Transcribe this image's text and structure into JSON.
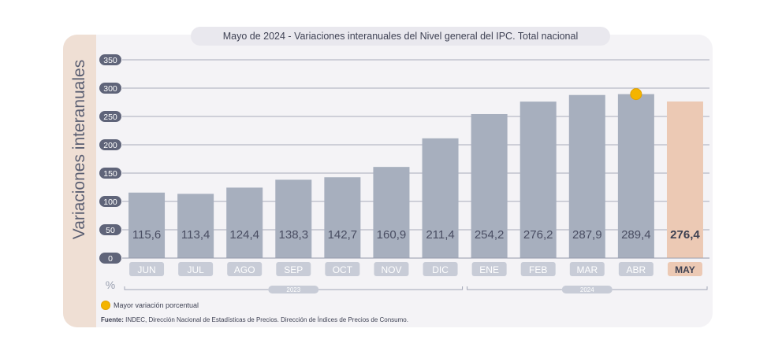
{
  "chart_data": {
    "type": "bar",
    "title": "Mayo de 2024 - Variaciones interanuales del Nivel general del IPC. Total nacional",
    "ylabel": "Variaciones interanuales",
    "yunit": "%",
    "ylim": [
      0,
      350
    ],
    "yticks": [
      "0",
      "50",
      "100",
      "150",
      "200",
      "250",
      "300",
      "350"
    ],
    "categories": [
      "JUN",
      "JUL",
      "AGO",
      "SEP",
      "OCT",
      "NOV",
      "DIC",
      "ENE",
      "FEB",
      "MAR",
      "ABR",
      "MAY"
    ],
    "values": [
      115.6,
      113.4,
      124.4,
      138.3,
      142.7,
      160.9,
      211.4,
      254.2,
      276.2,
      287.9,
      289.4,
      276.4
    ],
    "value_labels": [
      "115,6",
      "113,4",
      "124,4",
      "138,3",
      "142,7",
      "160,9",
      "211,4",
      "254,2",
      "276,2",
      "287,9",
      "289,4",
      "276,4"
    ],
    "year_groups": [
      {
        "label": "2023",
        "first": "JUN",
        "last": "DIC"
      },
      {
        "label": "2024",
        "first": "ENE",
        "last": "MAY"
      }
    ],
    "highlight": "MAY",
    "marker": "ABR",
    "grid": true,
    "colors": {
      "bar": "#a7afbe",
      "bar_highlight": "#ecc9b4",
      "pill": "#c8ccd7",
      "pill_highlight": "#ecc9b4",
      "text": "#4a4e63",
      "marker": "#f4b400"
    }
  },
  "legend": {
    "label": "Mayor variación porcentual"
  },
  "source": {
    "label": "Fuente:",
    "text": "INDEC, Dirección Nacional de Estadísticas de Precios. Dirección de Índices de Precios de Consumo."
  }
}
